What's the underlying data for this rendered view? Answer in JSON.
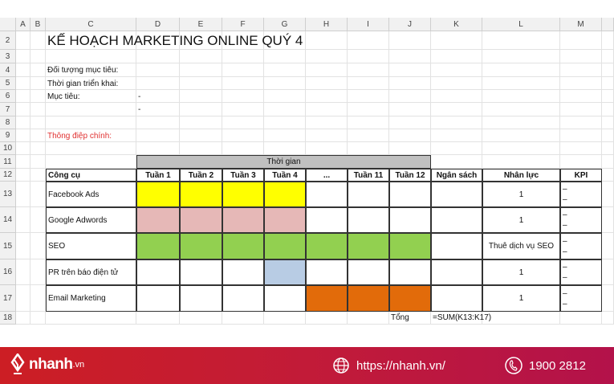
{
  "sheet": {
    "columns": [
      "A",
      "B",
      "C",
      "D",
      "E",
      "F",
      "G",
      "H",
      "I",
      "J",
      "K",
      "L",
      "M"
    ],
    "rows": [
      2,
      3,
      4,
      5,
      6,
      7,
      8,
      9,
      10,
      11,
      12,
      13,
      14,
      15,
      16,
      17,
      18
    ],
    "title": "KẾ HOẠCH MARKETING ONLINE QUÝ 4",
    "labels": {
      "target": "Đối tượng mục tiêu:",
      "period": "Thời gian triển khai:",
      "goal": "Mục tiêu:",
      "goal_dash1": "-",
      "goal_dash2": "-",
      "key_message": "Thông điệp chính:"
    },
    "table": {
      "time_group": "Thời gian",
      "headers": [
        "Công cụ",
        "Tuần 1",
        "Tuần 2",
        "Tuần 3",
        "Tuần 4",
        "...",
        "Tuần 11",
        "Tuần 12",
        "Ngân sách",
        "Nhân lực",
        "KPI"
      ],
      "rows": [
        {
          "tool": "Facebook Ads",
          "weeks": [
            "#ffff00",
            "#ffff00",
            "#ffff00",
            "#ffff00",
            "",
            "",
            ""
          ],
          "staff": "1",
          "kpi": "–\n–"
        },
        {
          "tool": "Google Adwords",
          "weeks": [
            "#e6b8b7",
            "#e6b8b7",
            "#e6b8b7",
            "#e6b8b7",
            "",
            "",
            ""
          ],
          "staff": "1",
          "kpi": "–\n–"
        },
        {
          "tool": "SEO",
          "weeks": [
            "#92d050",
            "#92d050",
            "#92d050",
            "#92d050",
            "#92d050",
            "#92d050",
            "#92d050"
          ],
          "staff": "Thuê dịch vụ SEO",
          "kpi": "–\n–"
        },
        {
          "tool": "PR trên báo điện tử",
          "weeks": [
            "",
            "",
            "",
            "#b8cce4",
            "",
            "",
            ""
          ],
          "staff": "1",
          "kpi": "–\n–"
        },
        {
          "tool": "Email Marketing",
          "weeks": [
            "",
            "",
            "",
            "",
            "#e26b0a",
            "#e26b0a",
            "#e26b0a"
          ],
          "staff": "1",
          "kpi": "–\n–"
        }
      ],
      "total_label": "Tổng",
      "total_formula": "=SUM(K13:K17)"
    }
  },
  "footer": {
    "brand": "nhanh",
    "brand_suffix": ".vn",
    "website": "https://nhanh.vn/",
    "hotline": "1900 2812",
    "background": "#c81d2f"
  }
}
